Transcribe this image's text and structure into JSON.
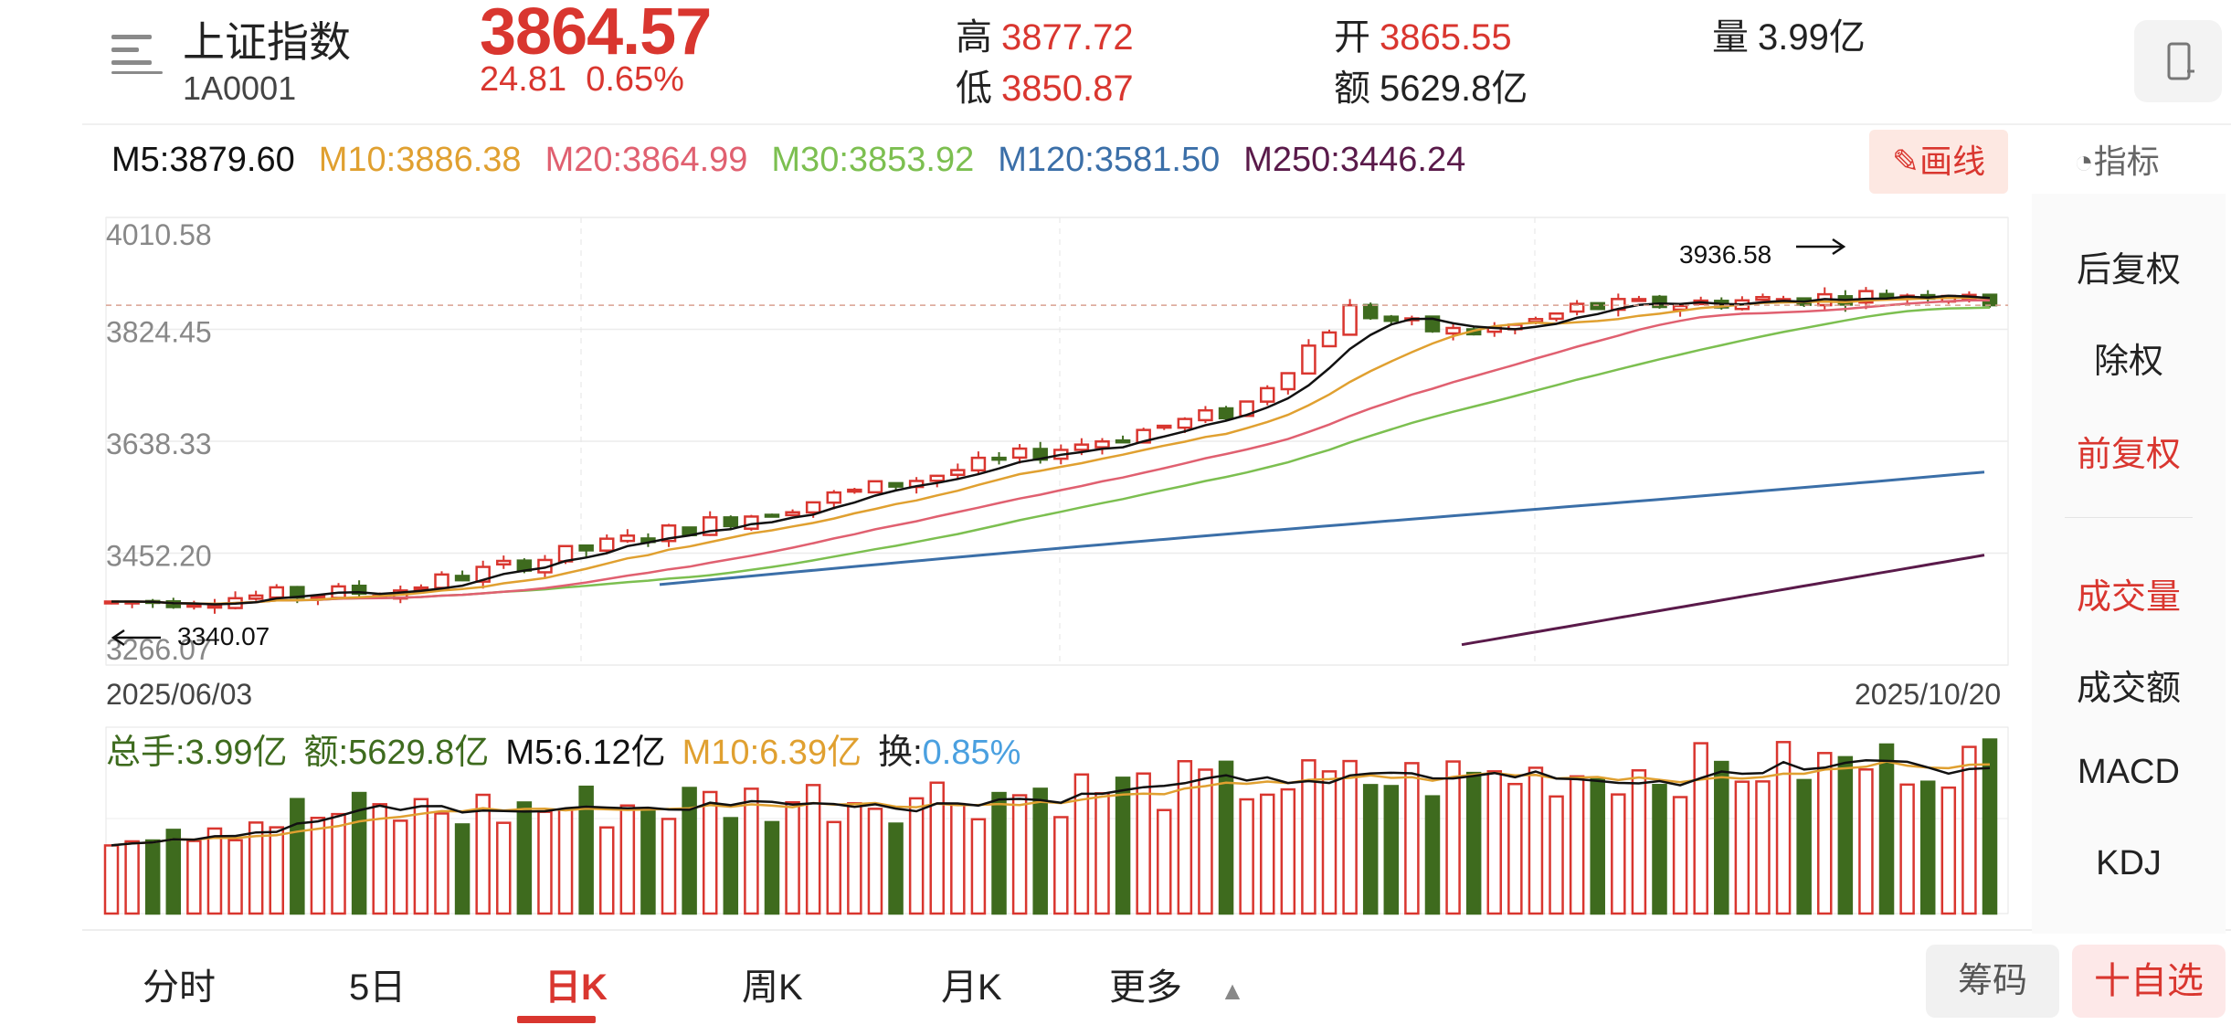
{
  "header": {
    "index_name": "上证指数",
    "index_code": "1A0001",
    "price": "3864.57",
    "change": "24.81",
    "change_pct": "0.65%",
    "high_label": "高",
    "high": "3877.72",
    "low_label": "低",
    "low": "3850.87",
    "open_label": "开",
    "open": "3865.55",
    "amount_label": "额",
    "amount": "5629.8亿",
    "volume_label": "量",
    "volume": "3.99亿"
  },
  "ma_line": {
    "m5": "M5:3879.60",
    "m10": "M10:3886.38",
    "m20": "M20:3864.99",
    "m30": "M30:3853.92",
    "m120": "M120:3581.50",
    "m250": "M250:3446.24"
  },
  "draw_button": "画线",
  "indicator_button": "指标",
  "side_panel": {
    "items": [
      "后复权",
      "除权",
      "前复权",
      "成交量",
      "成交额",
      "MACD",
      "KDJ"
    ],
    "active": [
      "前复权",
      "成交量"
    ]
  },
  "chart_data": {
    "type": "candlestick",
    "y_axis_labels": [
      "4010.58",
      "3824.45",
      "3638.33",
      "3452.20",
      "3266.07"
    ],
    "ylim": [
      3266.07,
      4010.58
    ],
    "x_start": "2025/06/03",
    "x_end": "2025/10/20",
    "annotation_max": "3936.58",
    "annotation_min": "3340.07",
    "last_close": 3864.57,
    "colors": {
      "up": "#d9362f",
      "down": "#3e6b1e",
      "m5": "#111111",
      "m10": "#e0a030",
      "m20": "#e06070",
      "m30": "#7cbf50",
      "m120": "#3b6fa8",
      "m250": "#5a1a4a"
    }
  },
  "volume": {
    "total": "总手:3.99亿",
    "amount": "额:5629.8亿",
    "m5": "M5:6.12亿",
    "m10": "M10:6.39亿",
    "turnover_label": "换:",
    "turnover": "0.85%"
  },
  "tabs": [
    "分时",
    "5日",
    "日K",
    "周K",
    "月K",
    "更多"
  ],
  "active_tab": "日K",
  "chip_button": "筹码",
  "fav_button": "十自选"
}
